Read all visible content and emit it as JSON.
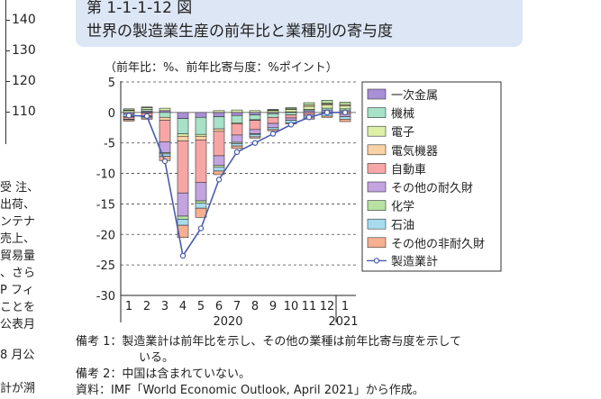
{
  "left_axis": {
    "ticks": [
      "140",
      "130",
      "120",
      "110"
    ]
  },
  "body_text": {
    "lines": [
      "受 注、",
      "出荷、",
      "ンテナ",
      "売上、",
      "貿易量",
      "、さら",
      "P フィ",
      "ことを",
      "公表月",
      "8 月公",
      "計が溯"
    ]
  },
  "header": {
    "figure_number": "第 1-1-1-12 図",
    "title": "世界の製造業生産の前年比と業種別の寄与度"
  },
  "chart_data": {
    "type": "bar",
    "stacked": true,
    "unit_label": "（前年比：%、前年比寄与度：%ポイント）",
    "categories": [
      "1",
      "2",
      "3",
      "4",
      "5",
      "6",
      "7",
      "8",
      "9",
      "10",
      "11",
      "12",
      "1"
    ],
    "year_labels": [
      "2020",
      "2021"
    ],
    "ylim": [
      -30,
      5
    ],
    "yticks": [
      "5",
      "0",
      "-5",
      "-10",
      "-15",
      "-20",
      "-25",
      "-30"
    ],
    "grid": "dashed horizontal",
    "legend_position": "right",
    "series": [
      {
        "name": "一次金属",
        "color": "#a88fd6",
        "values": [
          -0.3,
          0.2,
          0.3,
          -1.0,
          -0.8,
          -0.7,
          -0.5,
          -0.4,
          -0.2,
          0.1,
          0.3,
          0.4,
          0.3
        ]
      },
      {
        "name": "機械",
        "color": "#a7e2c8",
        "values": [
          -0.4,
          0.3,
          -0.8,
          -2.5,
          -2.8,
          -2.0,
          -1.2,
          -0.8,
          -0.6,
          -0.4,
          0.2,
          0.3,
          0.3
        ]
      },
      {
        "name": "電子",
        "color": "#dcf0a8",
        "values": [
          0.3,
          0.3,
          0.4,
          -0.4,
          -0.3,
          0.3,
          0.4,
          0.3,
          0.3,
          0.4,
          0.5,
          0.5,
          0.5
        ]
      },
      {
        "name": "電気機器",
        "color": "#fbd2a6",
        "values": [
          -0.1,
          -0.1,
          -0.5,
          -0.8,
          -0.6,
          -0.4,
          -0.2,
          -0.1,
          0.1,
          0.1,
          0.2,
          0.2,
          0.2
        ]
      },
      {
        "name": "自動車",
        "color": "#f7a6a6",
        "values": [
          -0.3,
          -0.4,
          -3.5,
          -8.5,
          -7.0,
          -4.0,
          -1.8,
          -1.5,
          -1.0,
          -0.5,
          -0.3,
          0.1,
          -0.3
        ]
      },
      {
        "name": "その他の耐久財",
        "color": "#c3a4e0",
        "values": [
          0.1,
          -0.2,
          -1.8,
          -3.8,
          -3.0,
          -1.6,
          -1.2,
          -0.7,
          -0.7,
          -0.4,
          -0.3,
          -0.2,
          -0.4
        ]
      },
      {
        "name": "化学",
        "color": "#b7e2a2",
        "values": [
          0.2,
          0.1,
          -0.2,
          -0.5,
          -0.4,
          -0.3,
          -0.2,
          -0.1,
          0.1,
          0.2,
          0.4,
          0.5,
          0.4
        ]
      },
      {
        "name": "石油",
        "color": "#a6dcef",
        "values": [
          -0.1,
          -0.2,
          -0.4,
          -1.0,
          -0.8,
          -0.6,
          -0.4,
          -0.4,
          -0.3,
          -0.4,
          -0.3,
          -0.4,
          -0.4
        ]
      },
      {
        "name": "その他の非耐久財",
        "color": "#f6b08f",
        "values": [
          -0.2,
          -0.2,
          -0.7,
          -2.0,
          -1.5,
          -0.6,
          -0.4,
          -0.2,
          -0.2,
          -0.2,
          -0.2,
          -0.2,
          -0.4
        ]
      }
    ],
    "line_series": {
      "name": "製造業計",
      "color": "#4a5cad",
      "values": [
        -0.5,
        -0.6,
        -8.0,
        -23.5,
        -19.0,
        -11.0,
        -6.5,
        -5.0,
        -3.5,
        -2.0,
        -0.8,
        0.0,
        0.0
      ]
    }
  },
  "notes": {
    "note1_line1": "備考 1：製造業計は前年比を示し、その他の業種は前年比寄与度を示して",
    "note1_line2": "いる。",
    "note2": "備考 2：中国は含まれていない。",
    "source": "資料：IMF「World Economic Outlook, April 2021」から作成。"
  }
}
